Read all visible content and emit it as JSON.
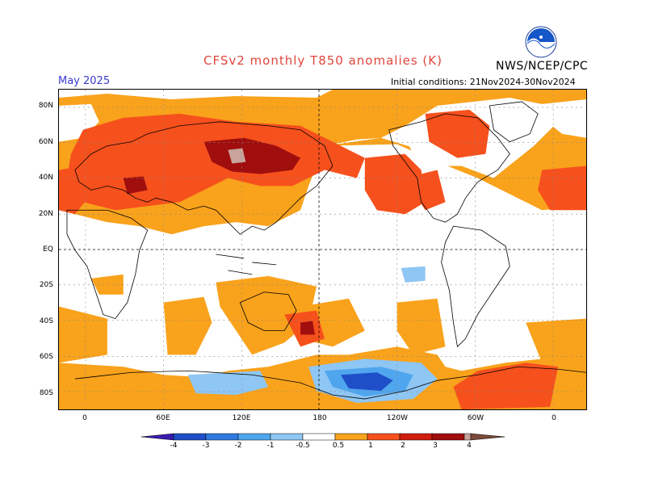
{
  "header": {
    "title": "CFSv2 monthly T850 anomalies (K)",
    "agency": "NWS/NCEP/CPC",
    "logo_text": "NOAA",
    "month": "May 2025",
    "initial_conditions": "Initial conditions: 21Nov2024-30Nov2024"
  },
  "axes": {
    "lat_labels": [
      "80N",
      "60N",
      "40N",
      "20N",
      "EQ",
      "20S",
      "40S",
      "60S",
      "80S"
    ],
    "lon_labels": [
      "0",
      "60E",
      "120E",
      "180",
      "120W",
      "60W",
      "0"
    ]
  },
  "colorbar": {
    "labels": [
      "-4",
      "-3",
      "-2",
      "-1",
      "-0.5",
      "0.5",
      "1",
      "2",
      "3",
      "4"
    ],
    "colors": [
      "#3a1bb0",
      "#1f4fc8",
      "#2f7ae0",
      "#4fa6ee",
      "#8ec6f4",
      "#ffffff",
      "#f9a21b",
      "#f6501c",
      "#d01e0f",
      "#a00e0e",
      "#c8a49a",
      "#7a4a3a"
    ]
  },
  "colors": {
    "title": "#e0463c",
    "month": "#3a3ad0",
    "land_outline": "#000000"
  }
}
